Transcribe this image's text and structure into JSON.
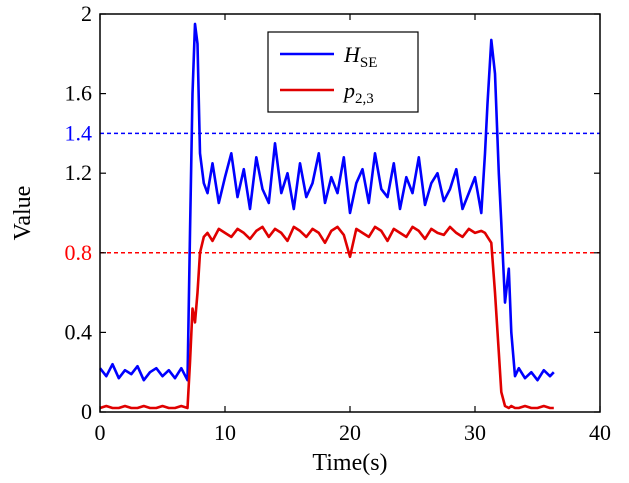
{
  "chart_data": {
    "type": "line",
    "title": "",
    "xlabel": "Time(s)",
    "ylabel": "Value",
    "xlim": [
      0,
      40
    ],
    "ylim": [
      0,
      2
    ],
    "xticks": [
      0,
      10,
      20,
      30,
      40
    ],
    "xtick_labels": [
      "0",
      "10",
      "20",
      "30",
      "40"
    ],
    "yticks": [
      0,
      0.4,
      0.8,
      1.2,
      1.6,
      2
    ],
    "ytick_labels": [
      "0",
      "0.4",
      "0.8",
      "1.2",
      "1.6",
      "2"
    ],
    "threshold_lines": [
      {
        "value": 1.4,
        "label": "1.4",
        "color": "#0000ff"
      },
      {
        "value": 0.8,
        "label": "0.8",
        "color": "#ff0000"
      }
    ],
    "legend": {
      "position": "top-center",
      "entries": [
        {
          "name_main": "H",
          "name_sub": "SE",
          "color": "#0000ff"
        },
        {
          "name_main": "p",
          "name_sub": "2,3",
          "color": "#e00000"
        }
      ]
    },
    "series": [
      {
        "name": "H_SE",
        "color": "#0000ff",
        "x": [
          0,
          0.5,
          1,
          1.5,
          2,
          2.5,
          3,
          3.5,
          4,
          4.5,
          5,
          5.5,
          6,
          6.5,
          7,
          7.2,
          7.4,
          7.6,
          7.8,
          8,
          8.3,
          8.6,
          9,
          9.5,
          10,
          10.5,
          11,
          11.5,
          12,
          12.5,
          13,
          13.5,
          14,
          14.5,
          15,
          15.5,
          16,
          16.5,
          17,
          17.5,
          18,
          18.5,
          19,
          19.5,
          20,
          20.5,
          21,
          21.5,
          22,
          22.5,
          23,
          23.5,
          24,
          24.5,
          25,
          25.5,
          26,
          26.5,
          27,
          27.5,
          28,
          28.5,
          29,
          29.5,
          30,
          30.5,
          30.8,
          31,
          31.3,
          31.6,
          31.9,
          32.1,
          32.4,
          32.7,
          32.9,
          33.2,
          33.5,
          34,
          34.5,
          35,
          35.5,
          36,
          36.3
        ],
        "values": [
          0.22,
          0.18,
          0.24,
          0.17,
          0.21,
          0.19,
          0.23,
          0.16,
          0.2,
          0.22,
          0.18,
          0.21,
          0.17,
          0.22,
          0.16,
          0.9,
          1.6,
          1.95,
          1.85,
          1.3,
          1.15,
          1.1,
          1.25,
          1.05,
          1.18,
          1.3,
          1.08,
          1.22,
          1.02,
          1.28,
          1.12,
          1.05,
          1.35,
          1.1,
          1.2,
          1.02,
          1.25,
          1.08,
          1.15,
          1.3,
          1.05,
          1.18,
          1.1,
          1.28,
          1.0,
          1.15,
          1.22,
          1.05,
          1.3,
          1.12,
          1.08,
          1.25,
          1.02,
          1.18,
          1.1,
          1.28,
          1.04,
          1.15,
          1.2,
          1.06,
          1.12,
          1.22,
          1.02,
          1.1,
          1.18,
          1.0,
          1.3,
          1.55,
          1.87,
          1.7,
          1.2,
          0.95,
          0.55,
          0.72,
          0.4,
          0.18,
          0.22,
          0.17,
          0.2,
          0.16,
          0.21,
          0.18,
          0.2
        ]
      },
      {
        "name": "p_2,3",
        "color": "#e00000",
        "x": [
          0,
          0.5,
          1,
          1.5,
          2,
          2.5,
          3,
          3.5,
          4,
          4.5,
          5,
          5.5,
          6,
          6.5,
          7,
          7.2,
          7.4,
          7.6,
          7.8,
          8,
          8.3,
          8.6,
          9,
          9.5,
          10,
          10.5,
          11,
          11.5,
          12,
          12.5,
          13,
          13.5,
          14,
          14.5,
          15,
          15.5,
          16,
          16.5,
          17,
          17.5,
          18,
          18.5,
          19,
          19.5,
          20,
          20.5,
          21,
          21.5,
          22,
          22.5,
          23,
          23.5,
          24,
          24.5,
          25,
          25.5,
          26,
          26.5,
          27,
          27.5,
          28,
          28.5,
          29,
          29.5,
          30,
          30.5,
          30.8,
          31,
          31.3,
          31.6,
          31.9,
          32.1,
          32.4,
          32.7,
          32.9,
          33.2,
          33.5,
          34,
          34.5,
          35,
          35.5,
          36,
          36.3
        ],
        "values": [
          0.02,
          0.03,
          0.02,
          0.02,
          0.03,
          0.02,
          0.02,
          0.03,
          0.02,
          0.02,
          0.03,
          0.02,
          0.02,
          0.03,
          0.02,
          0.25,
          0.52,
          0.45,
          0.6,
          0.8,
          0.88,
          0.9,
          0.86,
          0.92,
          0.9,
          0.88,
          0.92,
          0.9,
          0.87,
          0.91,
          0.93,
          0.88,
          0.92,
          0.9,
          0.86,
          0.93,
          0.91,
          0.88,
          0.92,
          0.9,
          0.85,
          0.91,
          0.93,
          0.89,
          0.78,
          0.92,
          0.9,
          0.88,
          0.93,
          0.91,
          0.86,
          0.92,
          0.9,
          0.88,
          0.93,
          0.91,
          0.87,
          0.92,
          0.9,
          0.89,
          0.93,
          0.9,
          0.88,
          0.92,
          0.9,
          0.91,
          0.9,
          0.88,
          0.85,
          0.6,
          0.3,
          0.1,
          0.03,
          0.02,
          0.03,
          0.02,
          0.02,
          0.03,
          0.02,
          0.02,
          0.03,
          0.02,
          0.02
        ]
      }
    ]
  }
}
